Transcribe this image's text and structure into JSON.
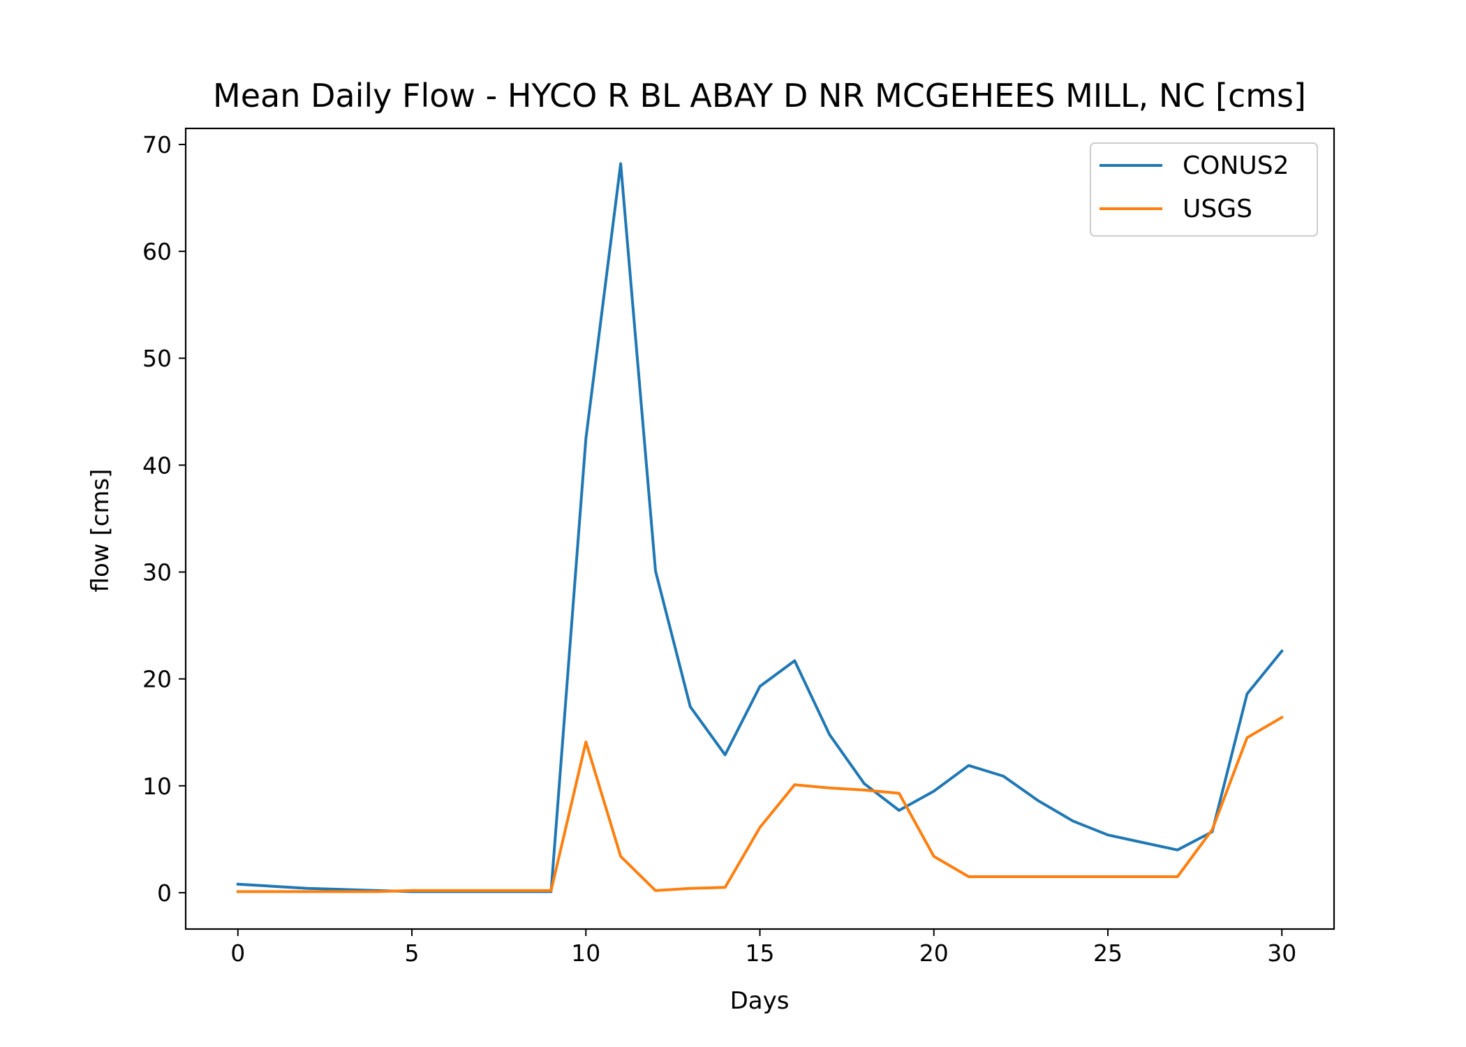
{
  "chart_data": {
    "type": "line",
    "title": "Mean Daily Flow - HYCO R BL ABAY D NR MCGEHEES MILL, NC [cms]",
    "xlabel": "Days",
    "ylabel": "flow [cms]",
    "xlim": [
      -1.5,
      31.5
    ],
    "ylim": [
      -3.4,
      71.5
    ],
    "xticks": [
      0,
      5,
      10,
      15,
      20,
      25,
      30
    ],
    "yticks": [
      0,
      10,
      20,
      30,
      40,
      50,
      60,
      70
    ],
    "grid": false,
    "legend_position": "top-right",
    "x": [
      0,
      1,
      2,
      3,
      4,
      5,
      6,
      7,
      8,
      9,
      10,
      11,
      12,
      13,
      14,
      15,
      16,
      17,
      18,
      19,
      20,
      21,
      22,
      23,
      24,
      25,
      26,
      27,
      28,
      29,
      30
    ],
    "series": [
      {
        "name": "CONUS2",
        "color": "#1f77b4",
        "values": [
          0.8,
          0.6,
          0.4,
          0.3,
          0.2,
          0.1,
          0.1,
          0.1,
          0.1,
          0.1,
          42.5,
          68.2,
          30.1,
          17.4,
          12.9,
          19.3,
          21.7,
          14.8,
          10.2,
          7.7,
          9.5,
          11.9,
          10.9,
          8.6,
          6.7,
          5.4,
          4.7,
          4.0,
          5.7,
          18.6,
          22.6
        ]
      },
      {
        "name": "USGS",
        "color": "#ff7f0e",
        "values": [
          0.1,
          0.1,
          0.1,
          0.1,
          0.1,
          0.2,
          0.2,
          0.2,
          0.2,
          0.2,
          14.1,
          3.4,
          0.2,
          0.4,
          0.5,
          6.1,
          10.1,
          9.8,
          9.6,
          9.3,
          3.4,
          1.5,
          1.5,
          1.5,
          1.5,
          1.5,
          1.5,
          1.5,
          5.9,
          14.5,
          16.4
        ]
      }
    ]
  }
}
